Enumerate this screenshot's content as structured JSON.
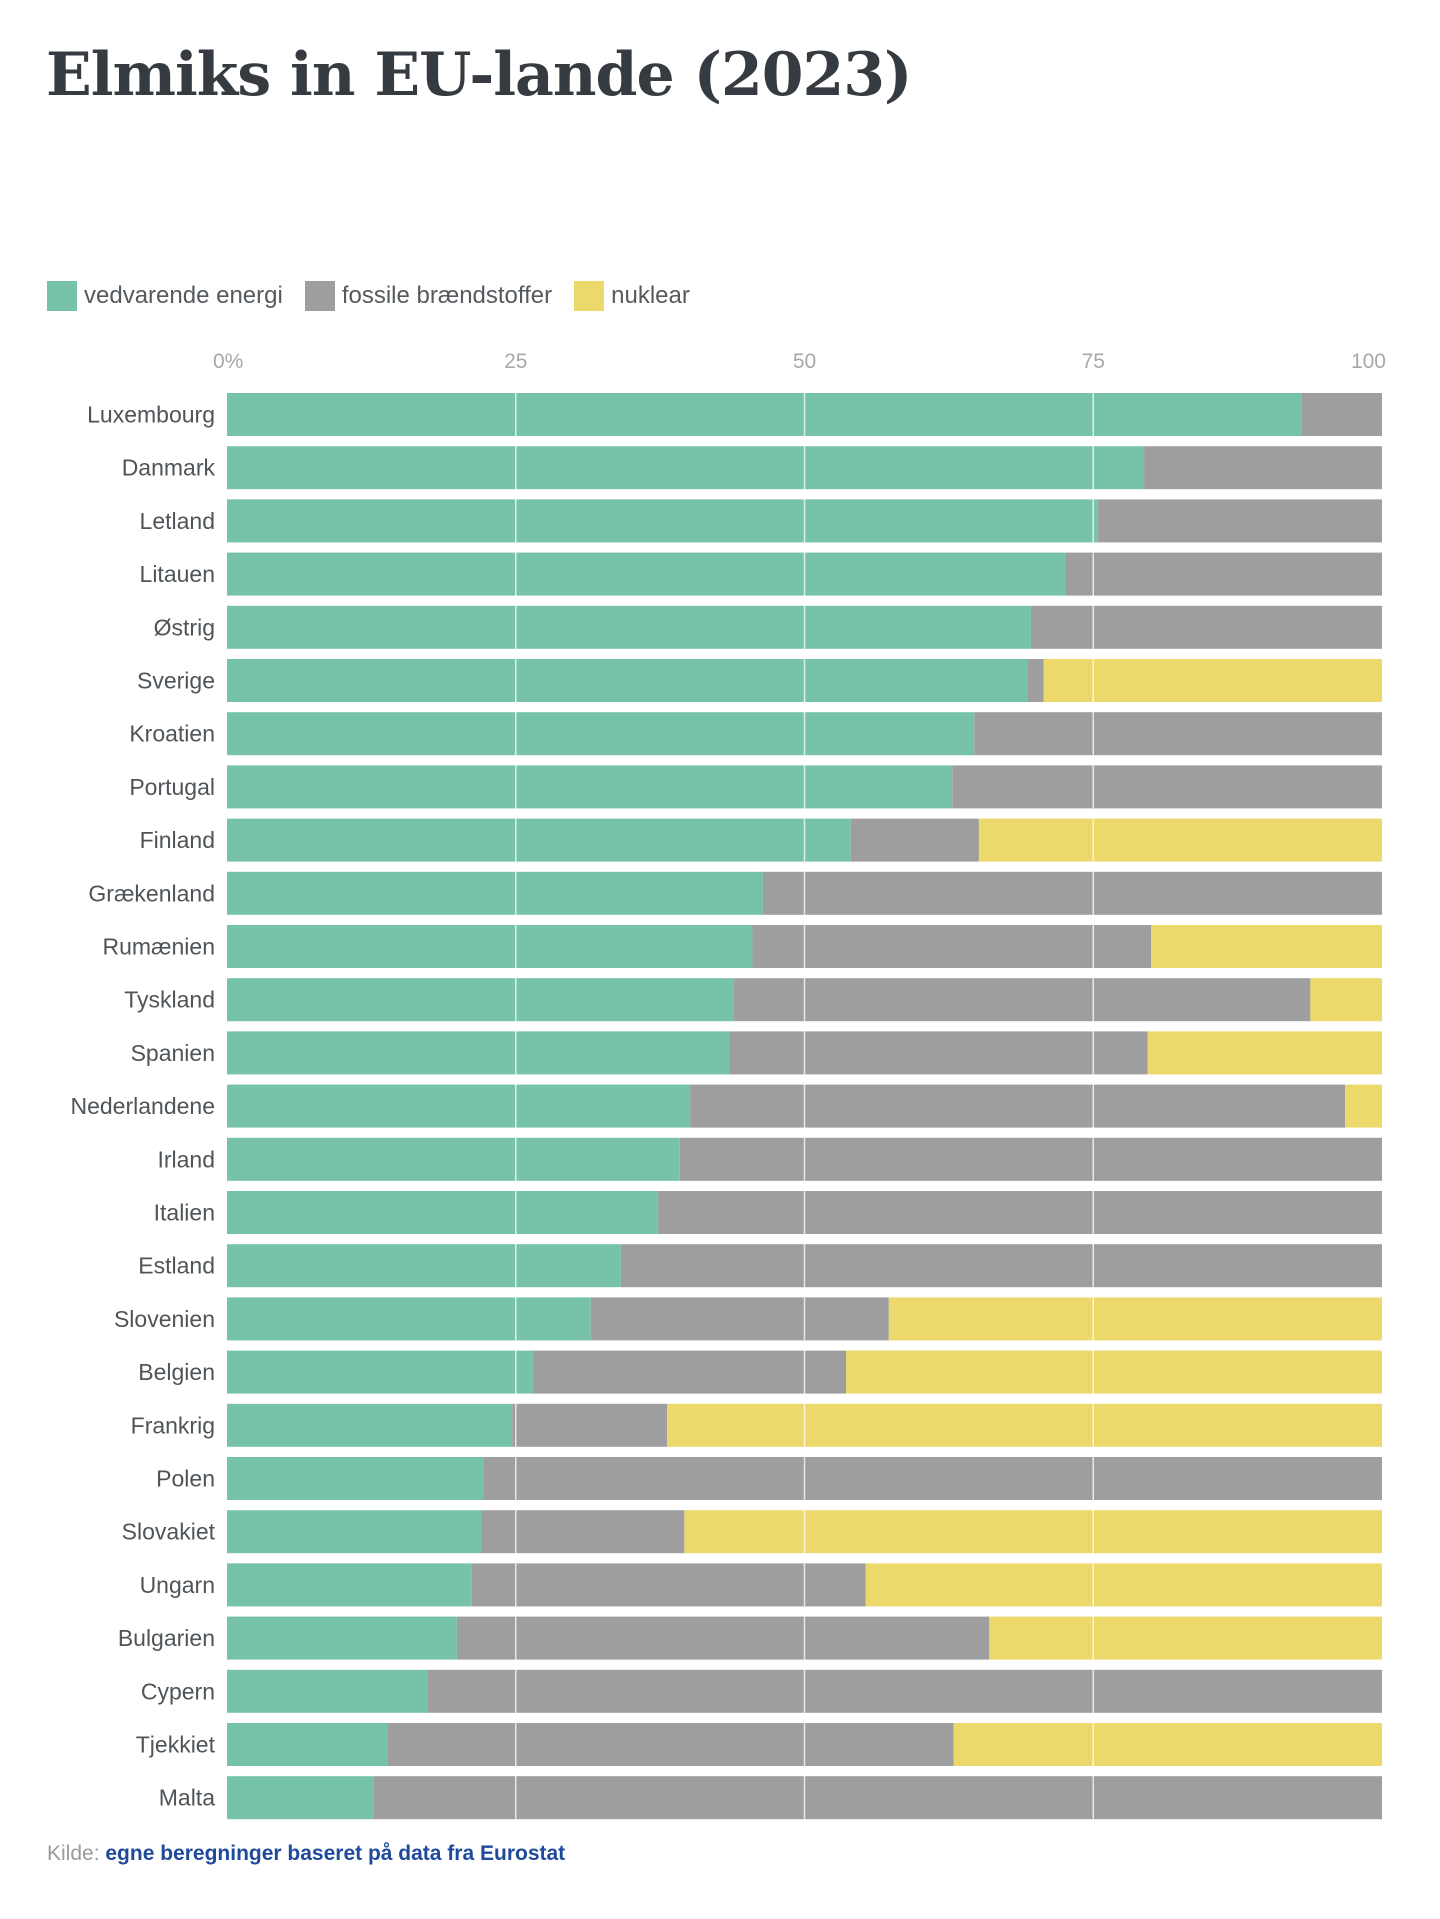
{
  "title": "Elmiks in EU-lande (2023)",
  "legend": [
    {
      "label": "vedvarende energi",
      "color": "#76c3a8"
    },
    {
      "label": "fossile brændstoffer",
      "color": "#9e9e9e"
    },
    {
      "label": "nuklear",
      "color": "#ecd86b"
    }
  ],
  "source": {
    "label": "Kilde:",
    "link_text": "egne beregninger baseret på data fra Eurostat"
  },
  "chart_data": {
    "type": "bar",
    "orientation": "horizontal",
    "stacked": true,
    "title": "Elmiks in EU-lande (2023)",
    "xlabel": "",
    "ylabel": "",
    "xlim": [
      0,
      100
    ],
    "x_ticks": [
      "0%",
      "25",
      "50",
      "75",
      "100"
    ],
    "x_tick_values": [
      0,
      25,
      50,
      75,
      100
    ],
    "grid": true,
    "legend_position": "top-left",
    "categories": [
      "Luxembourg",
      "Danmark",
      "Letland",
      "Litauen",
      "Østrig",
      "Sverige",
      "Kroatien",
      "Portugal",
      "Finland",
      "Grækenland",
      "Rumænien",
      "Tyskland",
      "Spanien",
      "Nederlandene",
      "Irland",
      "Italien",
      "Estland",
      "Slovenien",
      "Belgien",
      "Frankrig",
      "Polen",
      "Slovakiet",
      "Ungarn",
      "Bulgarien",
      "Cypern",
      "Tjekkiet",
      "Malta"
    ],
    "series": [
      {
        "name": "vedvarende energi",
        "color": "#76c3a8",
        "values": [
          93.0,
          79.4,
          75.4,
          72.6,
          69.6,
          69.3,
          64.7,
          62.8,
          54.0,
          46.4,
          45.5,
          43.9,
          43.5,
          40.1,
          39.2,
          37.3,
          34.1,
          31.5,
          26.5,
          24.7,
          22.2,
          22.0,
          21.2,
          19.9,
          17.4,
          13.9,
          12.7
        ]
      },
      {
        "name": "fossile brændstoffer",
        "color": "#9e9e9e",
        "values": [
          7.0,
          20.6,
          24.6,
          27.4,
          30.4,
          1.4,
          35.3,
          37.2,
          11.1,
          53.6,
          34.5,
          49.9,
          36.2,
          56.7,
          60.8,
          62.7,
          65.9,
          25.8,
          27.1,
          13.4,
          77.8,
          17.6,
          34.1,
          46.1,
          82.6,
          49.0,
          87.3
        ]
      },
      {
        "name": "nuklear",
        "color": "#ecd86b",
        "values": [
          0,
          0,
          0,
          0,
          0,
          29.3,
          0,
          0,
          34.9,
          0,
          20.0,
          6.2,
          20.3,
          3.2,
          0,
          0,
          0,
          42.7,
          46.4,
          61.9,
          0,
          60.4,
          44.7,
          34.0,
          0,
          37.1,
          0
        ]
      }
    ]
  }
}
